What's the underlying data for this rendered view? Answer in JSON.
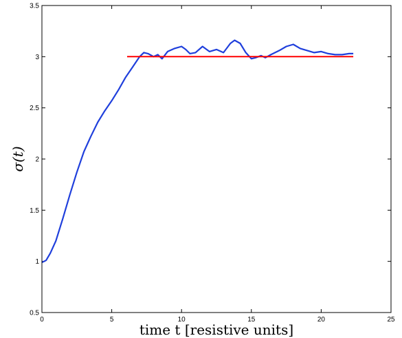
{
  "chart_data": {
    "type": "line",
    "title": "",
    "xlabel": "time t [resistive units]",
    "ylabel": "σ(t)",
    "xlim": [
      0,
      25
    ],
    "ylim": [
      0.5,
      3.5
    ],
    "xticks": [
      0,
      5,
      10,
      15,
      20,
      25
    ],
    "yticks": [
      0.5,
      1,
      1.5,
      2,
      2.5,
      3,
      3.5
    ],
    "xtick_labels": [
      "0",
      "5",
      "10",
      "15",
      "20",
      "25"
    ],
    "ytick_labels": [
      "0.5",
      "1",
      "1.5",
      "2",
      "2.5",
      "3",
      "3.5"
    ],
    "grid": false,
    "legend": "none",
    "series": [
      {
        "color": "#1f3fdc",
        "x": [
          0,
          0.3,
          0.6,
          1.0,
          1.5,
          2.0,
          2.5,
          3.0,
          3.5,
          4.0,
          4.5,
          5.0,
          5.5,
          6.0,
          6.5,
          7.0,
          7.3,
          7.6,
          8.0,
          8.3,
          8.6,
          9.0,
          9.5,
          10.0,
          10.3,
          10.6,
          11.0,
          11.5,
          12.0,
          12.5,
          13.0,
          13.5,
          13.8,
          14.2,
          14.6,
          15.0,
          15.3,
          15.7,
          16.0,
          16.4,
          17.0,
          17.5,
          18.0,
          18.5,
          19.0,
          19.5,
          20.0,
          20.5,
          21.0,
          21.5,
          22.0,
          22.3
        ],
        "y": [
          0.99,
          1.01,
          1.08,
          1.2,
          1.42,
          1.65,
          1.87,
          2.07,
          2.22,
          2.36,
          2.47,
          2.57,
          2.68,
          2.8,
          2.9,
          3.0,
          3.04,
          3.03,
          3.0,
          3.02,
          2.98,
          3.05,
          3.08,
          3.1,
          3.07,
          3.03,
          3.04,
          3.1,
          3.05,
          3.07,
          3.04,
          3.13,
          3.16,
          3.13,
          3.04,
          2.98,
          2.99,
          3.01,
          2.99,
          3.02,
          3.06,
          3.1,
          3.12,
          3.08,
          3.06,
          3.04,
          3.05,
          3.03,
          3.02,
          3.02,
          3.03,
          3.03
        ]
      },
      {
        "color": "#ff0000",
        "x": [
          6.1,
          22.3
        ],
        "y": [
          3.0,
          3.0
        ]
      }
    ]
  }
}
